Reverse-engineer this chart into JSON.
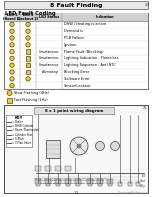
{
  "title": "8 Fault Finding",
  "page_title": "LED Fault Coding",
  "page_number": "23",
  "bg_color": "#ffffff",
  "title_bg": "#e8e8e8",
  "table_header_bg": "#d0d0d0",
  "row_data": [
    [
      "y",
      "y",
      "",
      "DHW / Heating is active"
    ],
    [
      "y",
      "y",
      "",
      "Demand is"
    ],
    [
      "y",
      "y",
      "",
      "PCB Failure"
    ],
    [
      "y",
      "y",
      "",
      "Ignition"
    ],
    [
      "y",
      "sq",
      "Simultaneous",
      "Flame Fault (Blocking)"
    ],
    [
      "y",
      "sq",
      "Simultaneous",
      "Lighting Indication - Flameloss"
    ],
    [
      "y",
      "sq",
      "Simultaneous",
      "Lighting Sequence - Anti NTC"
    ],
    [
      "y",
      "sq",
      "Alternating",
      "Blocking Error"
    ],
    [
      "y",
      "y",
      "",
      "Software Error"
    ],
    [
      "y",
      "",
      "",
      "Sensor/Lockout"
    ]
  ],
  "legend_items": [
    [
      "circle",
      "Slow Flashing (4Hz)"
    ],
    [
      "square",
      "Fast Flashing (1Hz)"
    ]
  ],
  "led_color": "#ffcc00",
  "led_border": "#444444",
  "wiring_bg": "#f0f0f0",
  "wiring_border": "#888888"
}
